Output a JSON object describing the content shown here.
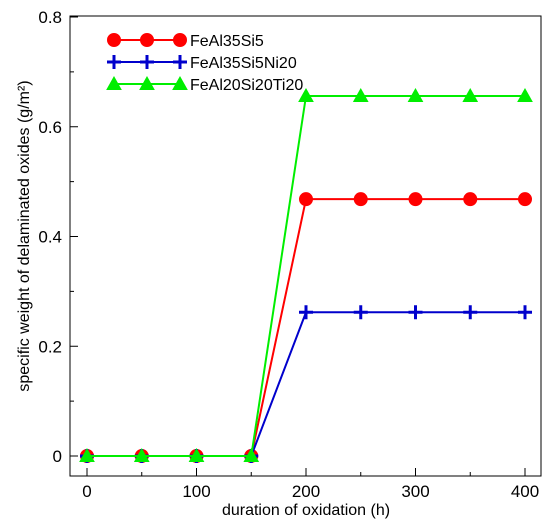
{
  "chart_data": {
    "type": "line",
    "xlabel": "duration of oxidation (h)",
    "ylabel": "specific weight of delaminated oxides (g/m²)",
    "xlim": [
      0,
      400
    ],
    "ylim": [
      0,
      0.8
    ],
    "xticks": [
      "0",
      "100",
      "200",
      "300",
      "400"
    ],
    "yticks": [
      "0",
      "0.2",
      "0.4",
      "0.6",
      "0.8"
    ],
    "x": [
      0,
      50,
      100,
      150,
      200,
      250,
      300,
      350,
      400
    ],
    "legend_position": "top-left",
    "grid": false,
    "series": [
      {
        "name": "FeAl35Si5",
        "color": "#ff0000",
        "marker": "circle",
        "values": [
          0,
          0,
          0,
          0,
          0.468,
          0.468,
          0.468,
          0.468,
          0.468
        ]
      },
      {
        "name": "FeAl35Si5Ni20",
        "color": "#0000cc",
        "marker": "plus",
        "values": [
          0,
          0,
          0,
          0,
          0.262,
          0.262,
          0.262,
          0.262,
          0.262
        ]
      },
      {
        "name": "FeAl20Si20Ti20",
        "color": "#00ee00",
        "marker": "triangle",
        "values": [
          0,
          0,
          0,
          0,
          0.656,
          0.656,
          0.656,
          0.656,
          0.656
        ]
      }
    ]
  }
}
